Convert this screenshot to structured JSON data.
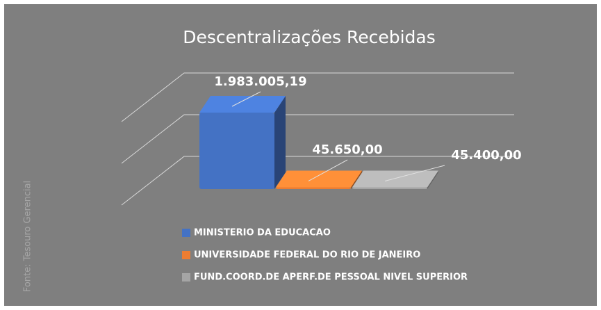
{
  "chart_data": {
    "type": "bar3d",
    "title": "Descentralizações Recebidas",
    "side_note": "Fonte: Tesouro Gerencial",
    "categories": [
      "MINISTERIO DA EDUCACAO",
      "UNIVERSIDADE FEDERAL DO RIO DE JANEIRO",
      "FUND.COORD.DE APERF.DE PESSOAL NIVEL SUPERIOR"
    ],
    "values": [
      1983005.19,
      45650,
      45400
    ],
    "value_labels": [
      "1.983.005,19",
      "45.650,00",
      "45.400,00"
    ],
    "colors": [
      "#4472c4",
      "#ed7d31",
      "#a5a5a5"
    ],
    "grid": true,
    "legend": "bottom"
  }
}
